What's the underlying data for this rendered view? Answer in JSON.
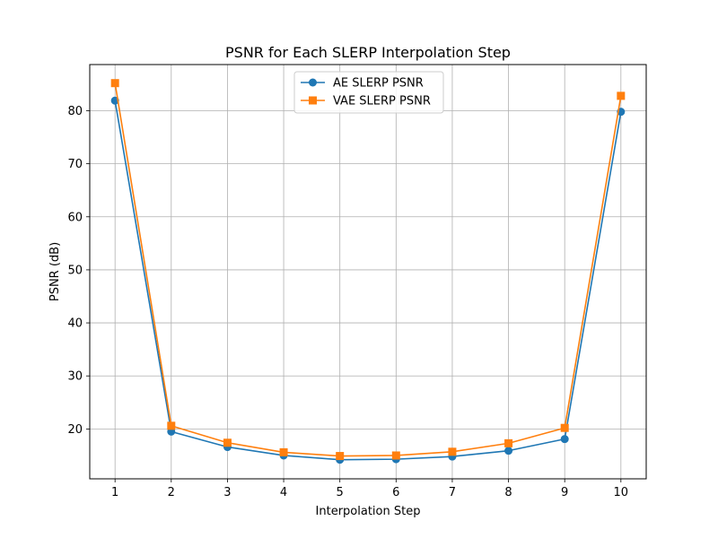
{
  "chart_data": {
    "type": "line",
    "title": "PSNR for Each SLERP Interpolation Step",
    "xlabel": "Interpolation Step",
    "ylabel": "PSNR (dB)",
    "x": [
      1,
      2,
      3,
      4,
      5,
      6,
      7,
      8,
      9,
      10
    ],
    "xticks": [
      "1",
      "2",
      "3",
      "4",
      "5",
      "6",
      "7",
      "8",
      "9",
      "10"
    ],
    "yticks": [
      "20",
      "30",
      "40",
      "50",
      "60",
      "70",
      "80"
    ],
    "xlim": [
      0.55,
      10.45
    ],
    "ylim": [
      10.6,
      88.7
    ],
    "grid": true,
    "legend_position": "upper-center",
    "series": [
      {
        "name": "AE SLERP PSNR",
        "color": "#1f77b4",
        "marker": "circle",
        "values": [
          81.9,
          19.5,
          16.6,
          15.0,
          14.2,
          14.3,
          14.8,
          15.9,
          18.1,
          79.8
        ]
      },
      {
        "name": "VAE SLERP PSNR",
        "color": "#ff7f0e",
        "marker": "square",
        "values": [
          85.2,
          20.6,
          17.4,
          15.6,
          14.9,
          15.0,
          15.7,
          17.3,
          20.2,
          82.8
        ]
      }
    ]
  }
}
